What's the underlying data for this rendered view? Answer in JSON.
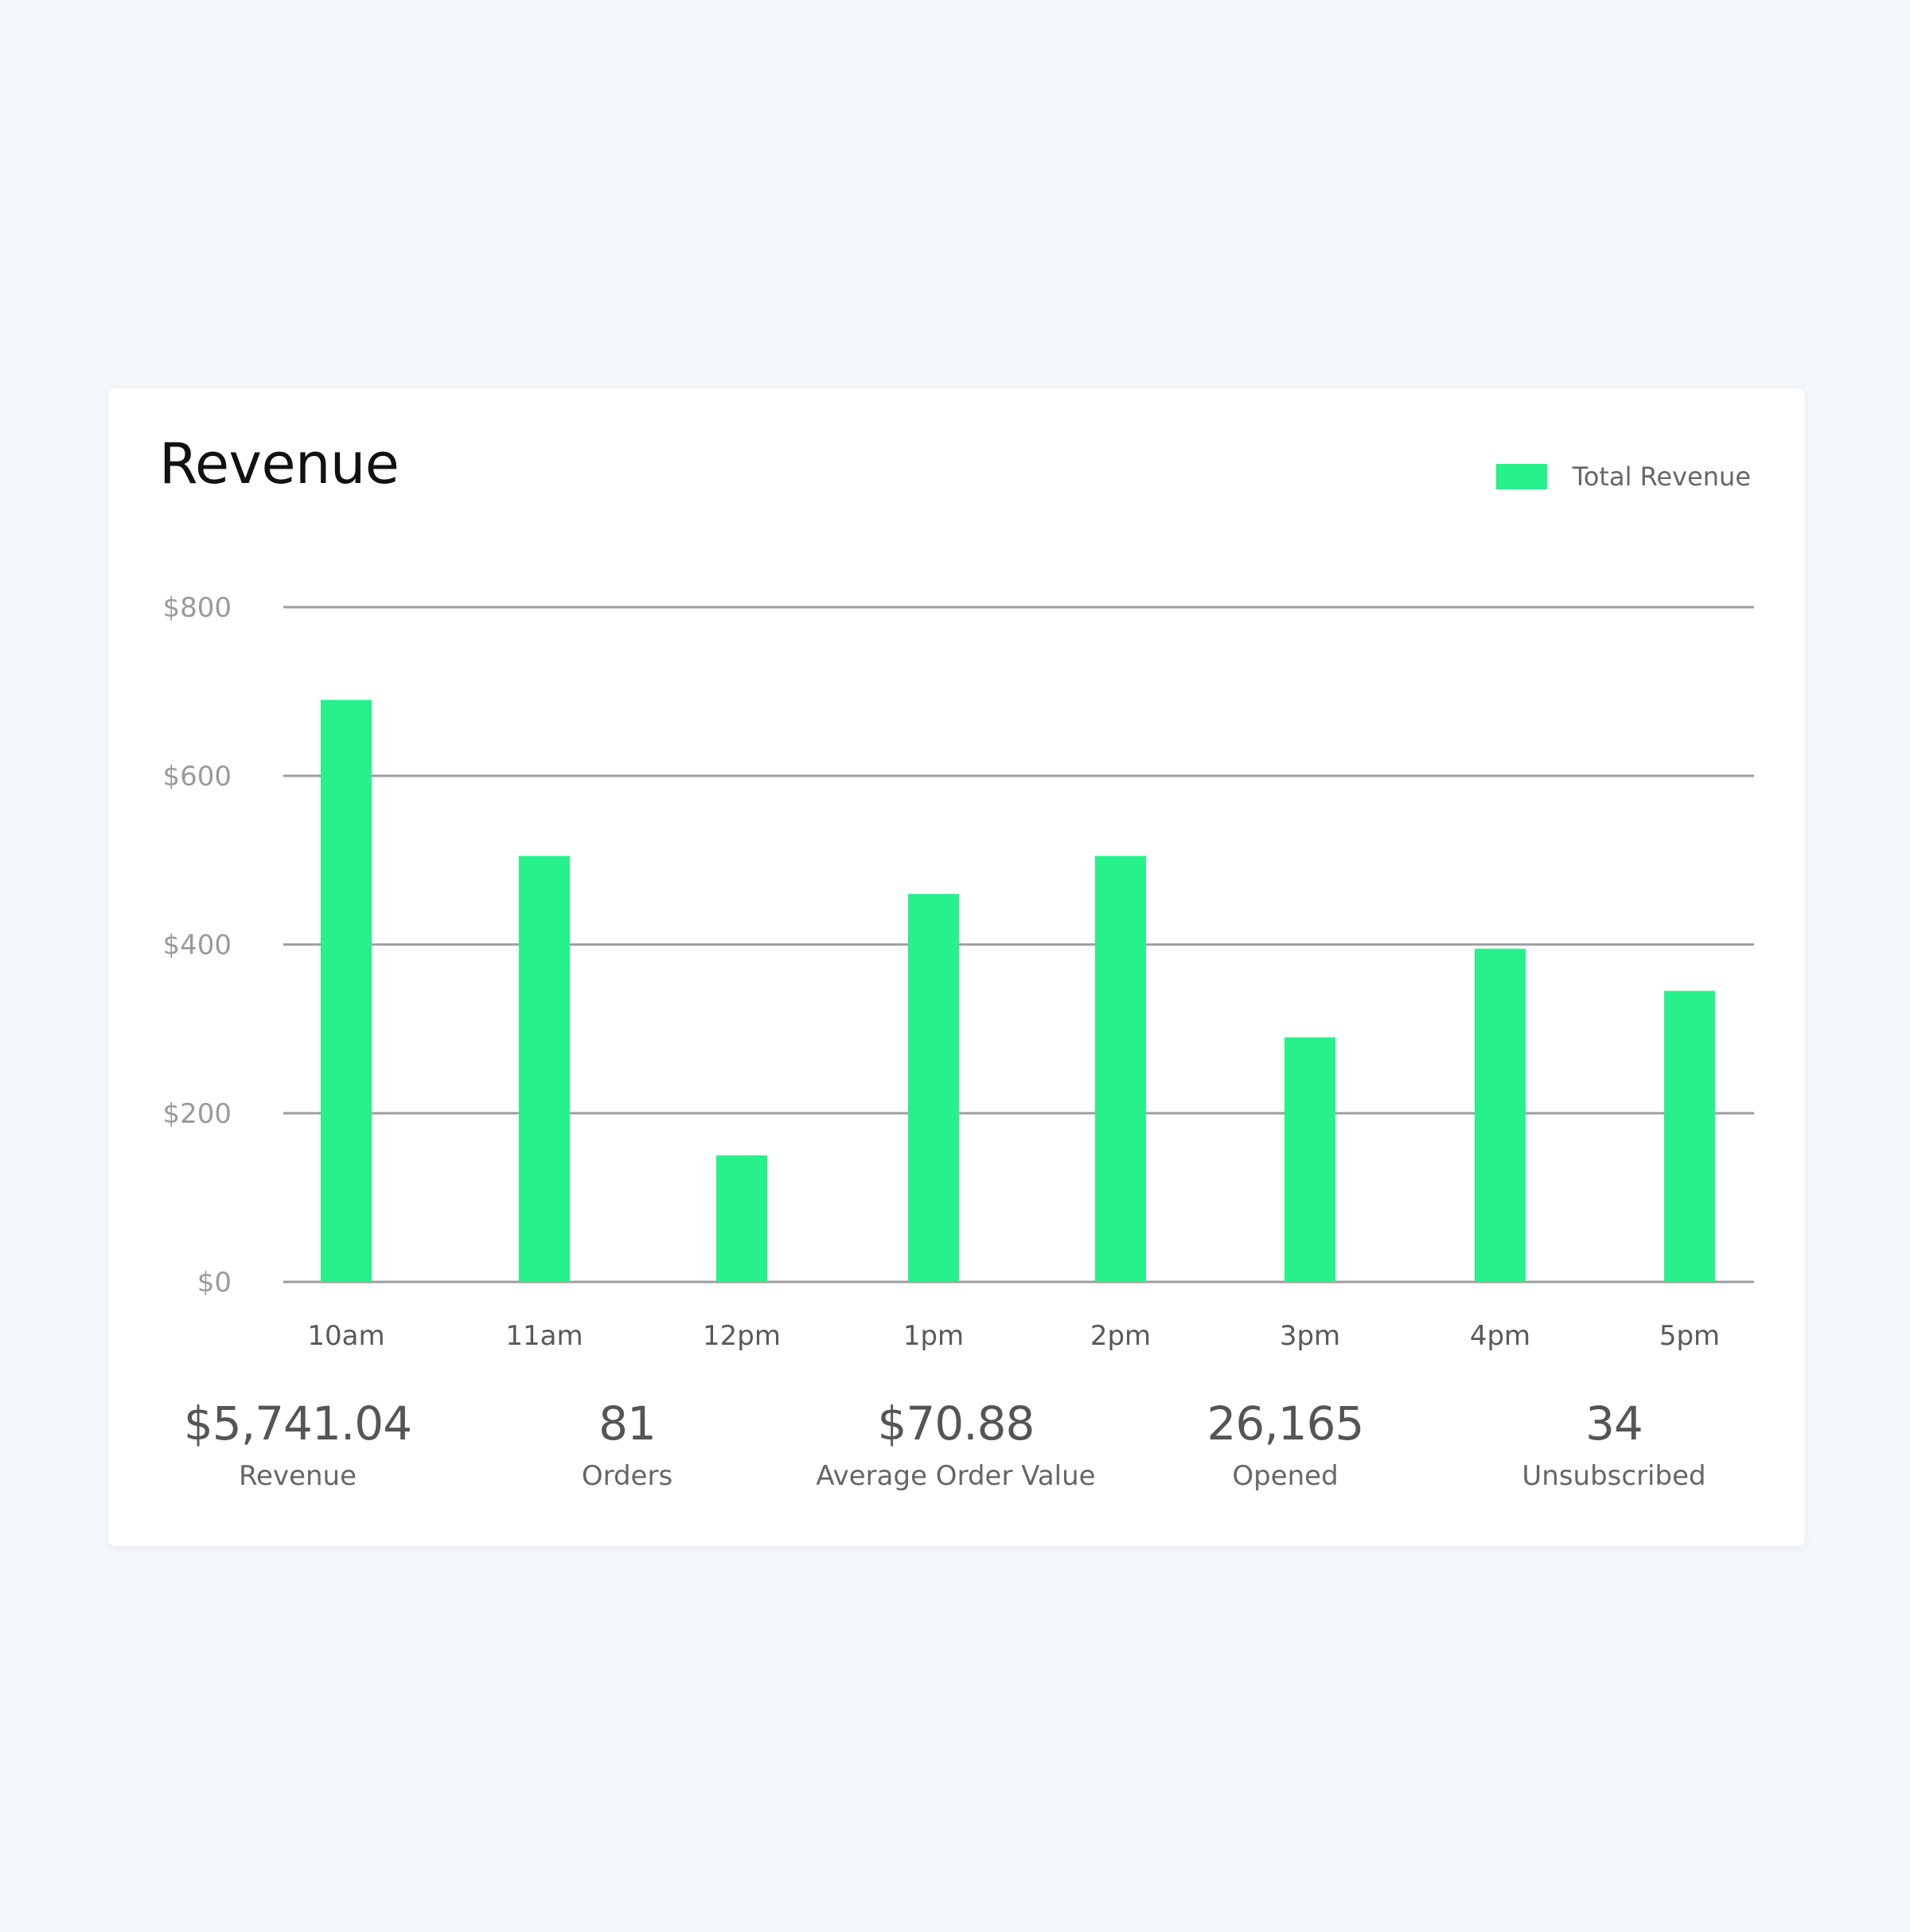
{
  "chart_data": {
    "type": "bar",
    "title": "Revenue",
    "categories": [
      "10am",
      "11am",
      "12pm",
      "1pm",
      "2pm",
      "3pm",
      "4pm",
      "5pm"
    ],
    "series": [
      {
        "name": "Total Revenue",
        "values": [
          690,
          505,
          150,
          460,
          505,
          290,
          395,
          345
        ]
      }
    ],
    "ylim": [
      0,
      800
    ],
    "yticks": [
      0,
      200,
      400,
      600,
      800
    ],
    "ytick_labels": [
      "$0",
      "$200",
      "$400",
      "$600",
      "$800"
    ],
    "xlabel": "",
    "ylabel": "",
    "grid": true,
    "legend": "top-right",
    "color": "#27f18b"
  },
  "stats": [
    {
      "value": "$5,741.04",
      "label": "Revenue"
    },
    {
      "value": "81",
      "label": "Orders"
    },
    {
      "value": "$70.88",
      "label": "Average Order Value"
    },
    {
      "value": "26,165",
      "label": "Opened"
    },
    {
      "value": "34",
      "label": "Unsubscribed"
    }
  ]
}
